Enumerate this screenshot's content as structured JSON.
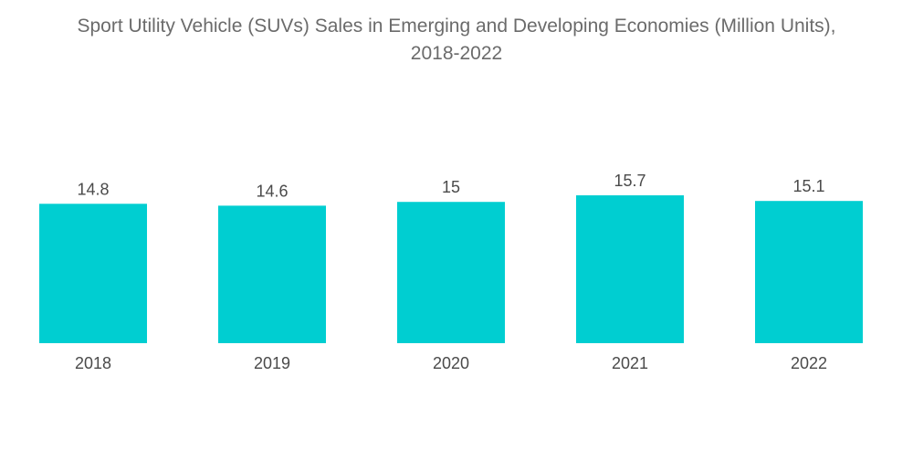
{
  "chart_data": {
    "type": "bar",
    "title_line1": "Sport Utility Vehicle (SUVs) Sales in Emerging and Developing Economies (Million Units),",
    "title_line2": "2018-2022",
    "categories": [
      "2018",
      "2019",
      "2020",
      "2021",
      "2022"
    ],
    "values": [
      14.8,
      14.6,
      15,
      15.7,
      15.1
    ],
    "value_labels": [
      "14.8",
      "14.6",
      "15",
      "15.7",
      "15.1"
    ],
    "xlabel": "",
    "ylabel": "",
    "ylim": [
      0,
      15.7
    ],
    "grid": false,
    "legend": "none",
    "bar_color": "#00ced1"
  }
}
